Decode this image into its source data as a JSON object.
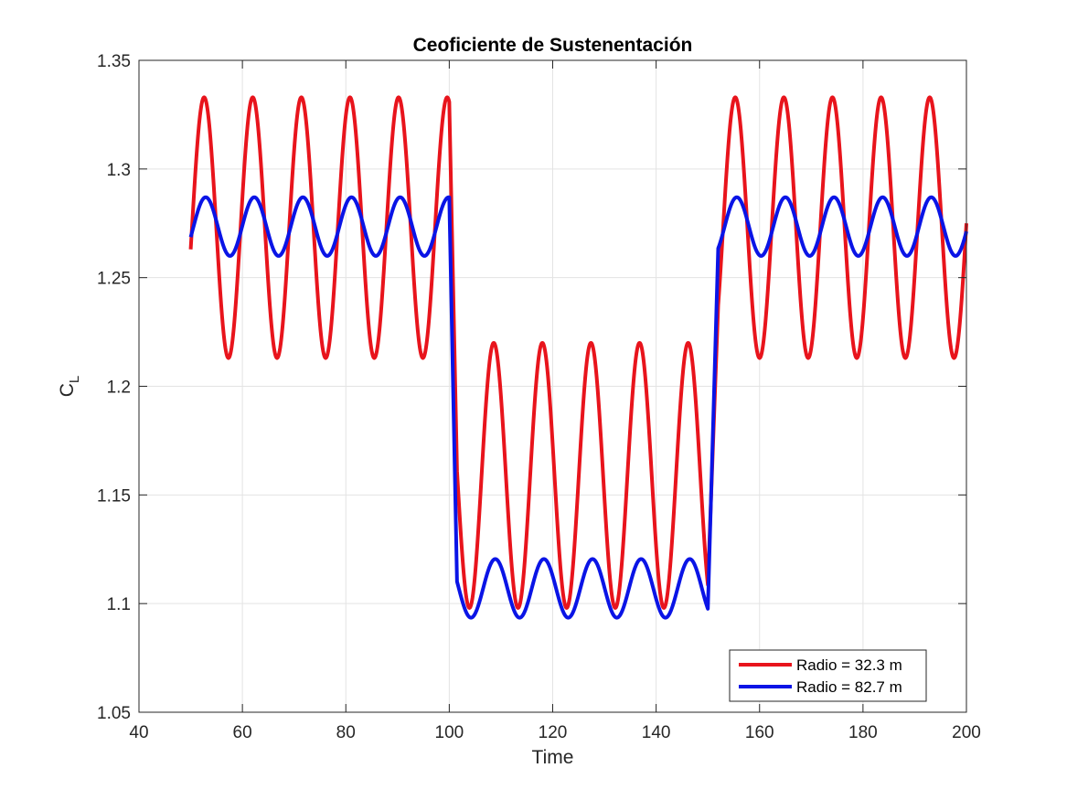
{
  "chart_data": {
    "type": "line",
    "title": "Ceoficiente de Sustenentación",
    "xlabel": "Time",
    "ylabel": "C",
    "ylabel_subscript": "L",
    "xlim": [
      40,
      200
    ],
    "ylim": [
      1.05,
      1.35
    ],
    "x_ticks": [
      40,
      60,
      80,
      100,
      120,
      140,
      160,
      180,
      200
    ],
    "x_tick_labels": [
      "40",
      "60",
      "80",
      "100",
      "120",
      "140",
      "160",
      "180",
      "200"
    ],
    "y_ticks": [
      1.05,
      1.1,
      1.15,
      1.2,
      1.25,
      1.3,
      1.35
    ],
    "y_tick_labels": [
      "1.05",
      "1.1",
      "1.15",
      "1.2",
      "1.25",
      "1.3",
      "1.35"
    ],
    "grid": true,
    "legend_position": "bottom-right",
    "series": [
      {
        "name": "Radio = 32.3 m",
        "color": "#e8141c",
        "segments": [
          {
            "x_start": 50,
            "x_end": 100,
            "mean": 1.273,
            "amplitude": 0.06,
            "period": 9.4,
            "peak_at": 52.6
          },
          {
            "x_start": 101.5,
            "x_end": 150,
            "mean": 1.159,
            "amplitude": 0.061,
            "period": 9.4,
            "peak_at": 108.6
          },
          {
            "x_start": 152,
            "x_end": 200,
            "mean": 1.273,
            "amplitude": 0.06,
            "period": 9.4,
            "peak_at": 155.3
          }
        ]
      },
      {
        "name": "Radio = 82.7 m",
        "color": "#0a14e6",
        "segments": [
          {
            "x_start": 50,
            "x_end": 100,
            "mean": 1.2735,
            "amplitude": 0.0135,
            "period": 9.4,
            "peak_at": 52.9
          },
          {
            "x_start": 101.5,
            "x_end": 150,
            "mean": 1.107,
            "amplitude": 0.0135,
            "period": 9.4,
            "peak_at": 108.9
          },
          {
            "x_start": 152,
            "x_end": 200,
            "mean": 1.2735,
            "amplitude": 0.0135,
            "period": 9.4,
            "peak_at": 155.6
          }
        ]
      }
    ]
  }
}
